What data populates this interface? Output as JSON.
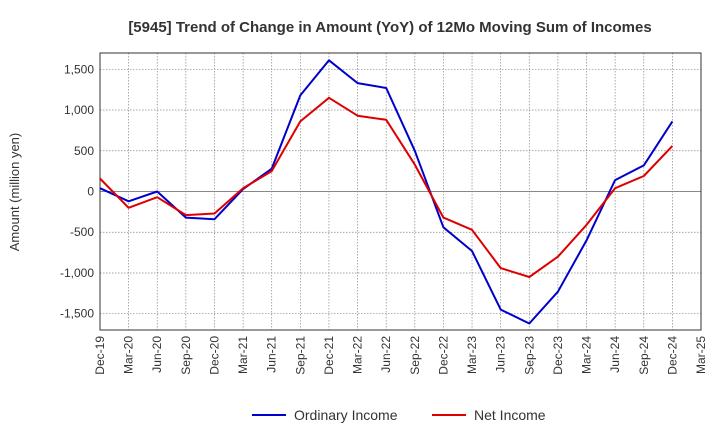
{
  "chart_data": {
    "type": "line",
    "title": "[5945]  Trend of Change in Amount (YoY) of 12Mo Moving Sum of Incomes",
    "xlabel": "",
    "ylabel": "Amount (million yen)",
    "categories": [
      "Dec-19",
      "Mar-20",
      "Jun-20",
      "Sep-20",
      "Dec-20",
      "Mar-21",
      "Jun-21",
      "Sep-21",
      "Dec-21",
      "Mar-22",
      "Jun-22",
      "Sep-22",
      "Dec-22",
      "Mar-23",
      "Jun-23",
      "Sep-23",
      "Dec-23",
      "Mar-24",
      "Jun-24",
      "Sep-24",
      "Dec-24",
      "Mar-25"
    ],
    "ylim": [
      -1700,
      1700
    ],
    "yticks": [
      -1500,
      -1000,
      -500,
      0,
      500,
      1000,
      1500
    ],
    "ytick_labels": [
      "-1,500",
      "-1,000",
      "-500",
      "0",
      "500",
      "1,000",
      "1,500"
    ],
    "grid": true,
    "legend": "bottom-center",
    "series": [
      {
        "name": "Ordinary Income",
        "color": "#0000cc",
        "values": [
          40,
          -120,
          0,
          -320,
          -340,
          30,
          280,
          1180,
          1610,
          1330,
          1270,
          500,
          -440,
          -730,
          -1450,
          -1620,
          -1230,
          -600,
          140,
          320,
          860,
          null
        ]
      },
      {
        "name": "Net Income",
        "color": "#dd0000",
        "values": [
          160,
          -200,
          -70,
          -290,
          -270,
          40,
          250,
          860,
          1150,
          930,
          880,
          330,
          -320,
          -470,
          -940,
          -1050,
          -800,
          -410,
          40,
          190,
          560,
          null
        ]
      }
    ]
  }
}
